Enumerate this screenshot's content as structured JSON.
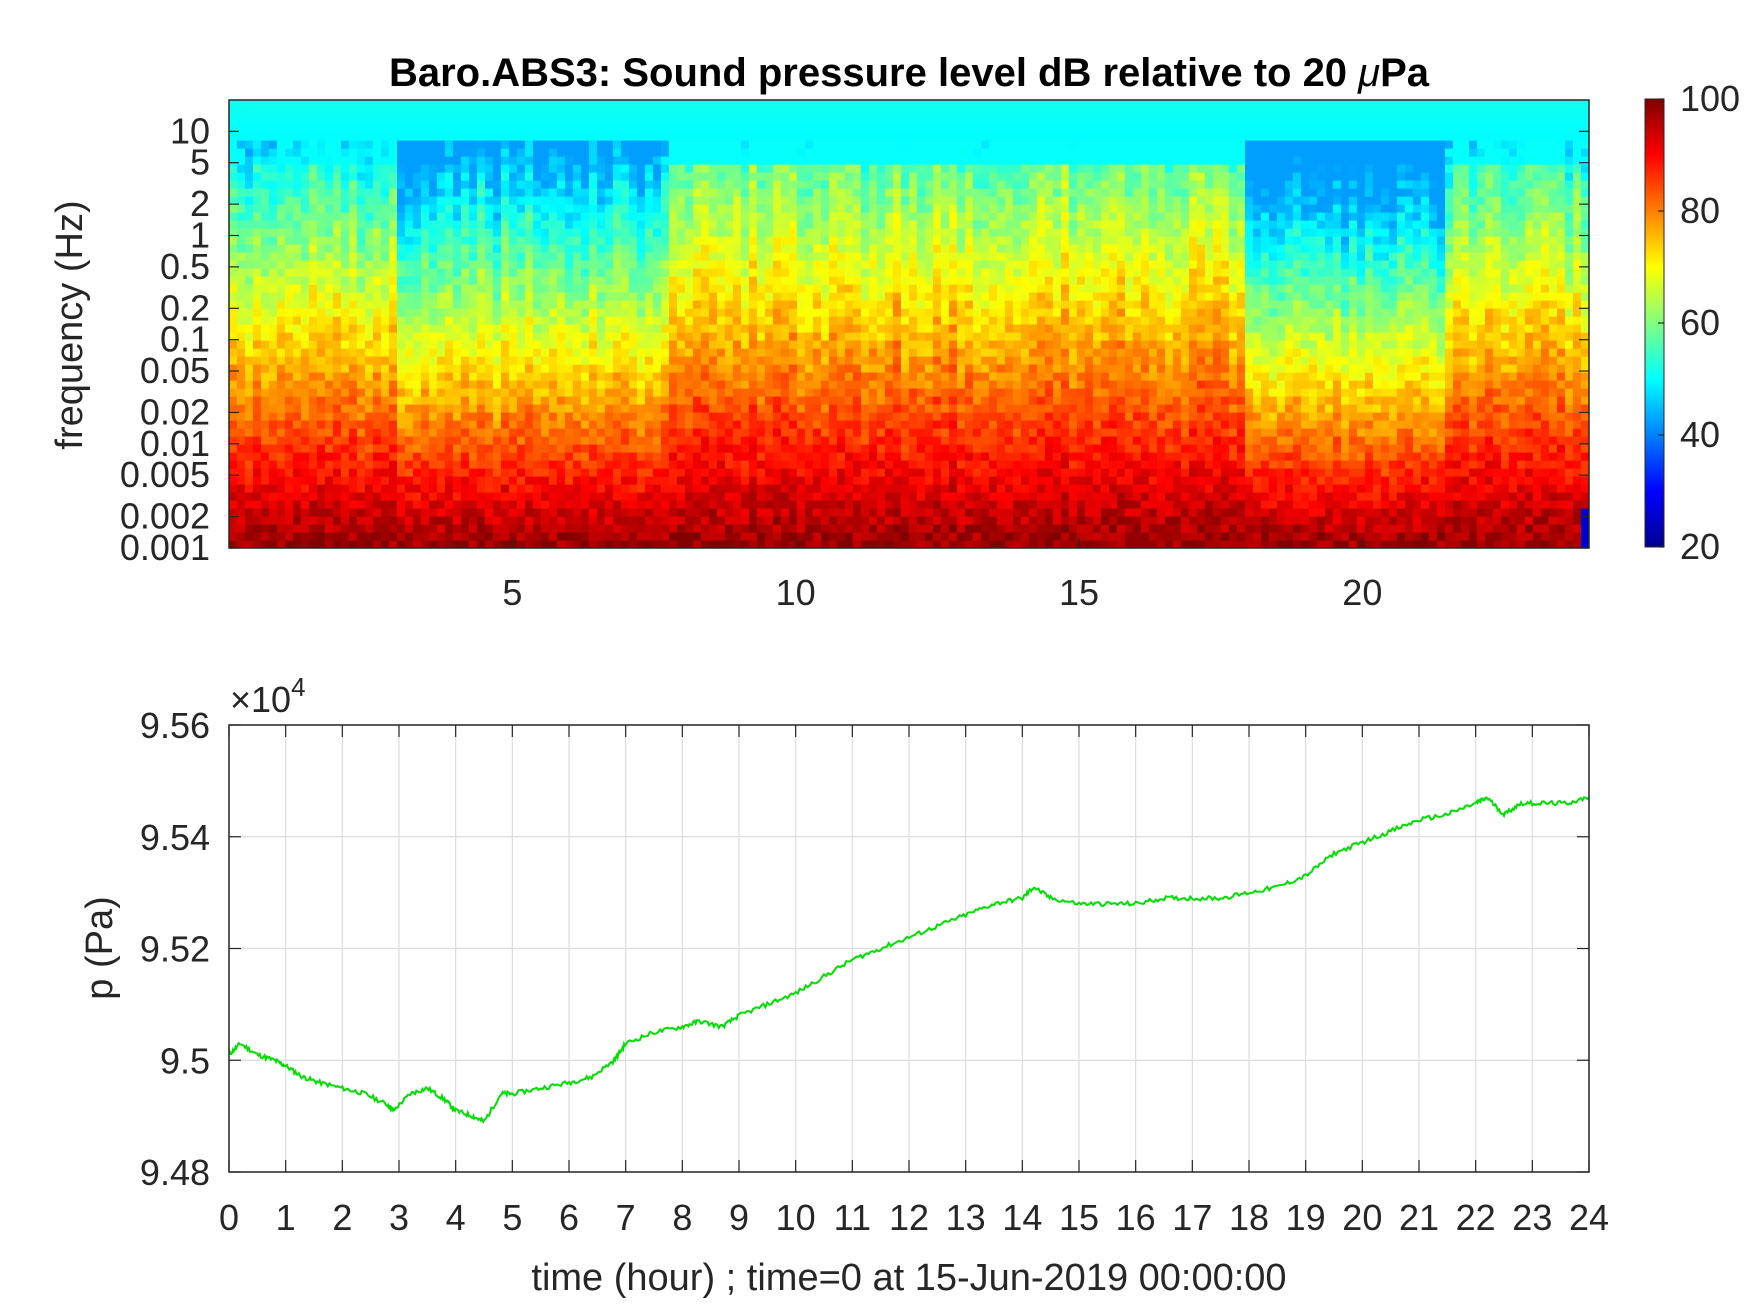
{
  "chart_data": [
    {
      "type": "heatmap",
      "title_prefix": "Baro.ABS3: Sound pressure level dB relative to 20 ",
      "title_mu": "μ",
      "title_suffix": "Pa",
      "ylabel": "frequency (Hz)",
      "xlabel": "",
      "y_scale": "log",
      "x_ticks": [
        "5",
        "10",
        "15",
        "20"
      ],
      "y_ticks": [
        "10",
        "5",
        "2",
        "1",
        "0.5",
        "0.2",
        "0.1",
        "0.05",
        "0.02",
        "0.01",
        "0.005",
        "0.002",
        "0.001"
      ],
      "colorbar": {
        "ticks": [
          "100",
          "80",
          "60",
          "40",
          "20"
        ],
        "range": [
          20,
          100
        ],
        "colormap": "jet"
      },
      "description_values": {
        "x_range_hours": [
          0,
          24
        ],
        "freq_range_hz": [
          0.001,
          20
        ]
      }
    },
    {
      "type": "line",
      "xlabel": "time (hour) ; time=0 at 15-Jun-2019 00:00:00",
      "ylabel": "p (Pa)",
      "exponent_prefix": "×10",
      "exponent_power": "4",
      "y_ticks": [
        "9.56",
        "9.54",
        "9.52",
        "9.5",
        "9.48"
      ],
      "x_ticks": [
        "0",
        "1",
        "2",
        "3",
        "4",
        "5",
        "6",
        "7",
        "8",
        "9",
        "10",
        "11",
        "12",
        "13",
        "14",
        "15",
        "16",
        "17",
        "18",
        "19",
        "20",
        "21",
        "22",
        "23",
        "24"
      ],
      "xlim": [
        0,
        24
      ],
      "ylim": [
        9.48,
        9.56
      ],
      "grid": true,
      "line_color": "#00e000",
      "series": [
        {
          "x": [
            0,
            0.2,
            0.5,
            0.8,
            1.0,
            1.3,
            1.6,
            2.0,
            2.4,
            2.8,
            2.9,
            3.2,
            3.5,
            3.8,
            4.0,
            4.3,
            4.5,
            4.8,
            5.0,
            5.5,
            6.0,
            6.4,
            6.8,
            7.0,
            7.5,
            8.0,
            8.3,
            8.7,
            9.0,
            9.5,
            10.0,
            10.5,
            11.0,
            11.5,
            12.0,
            12.5,
            13.0,
            13.5,
            14.0,
            14.2,
            14.5,
            15.0,
            15.5,
            16.0,
            16.5,
            17.0,
            17.5,
            18.0,
            18.5,
            19.0,
            19.5,
            20.0,
            20.5,
            21.0,
            21.5,
            22.0,
            22.2,
            22.5,
            22.8,
            23.2,
            23.6,
            24.0
          ],
          "y": [
            9.501,
            9.503,
            9.501,
            9.5,
            9.499,
            9.497,
            9.496,
            9.495,
            9.494,
            9.492,
            9.491,
            9.494,
            9.495,
            9.493,
            9.491,
            9.49,
            9.489,
            9.494,
            9.494,
            9.495,
            9.496,
            9.497,
            9.5,
            9.503,
            9.505,
            9.506,
            9.507,
            9.506,
            9.508,
            9.51,
            9.512,
            9.515,
            9.518,
            9.52,
            9.522,
            9.524,
            9.526,
            9.528,
            9.529,
            9.531,
            9.529,
            9.528,
            9.528,
            9.528,
            9.529,
            9.529,
            9.529,
            9.53,
            9.531,
            9.533,
            9.537,
            9.539,
            9.541,
            9.543,
            9.544,
            9.546,
            9.547,
            9.544,
            9.546,
            9.546,
            9.546,
            9.547
          ]
        }
      ]
    }
  ]
}
